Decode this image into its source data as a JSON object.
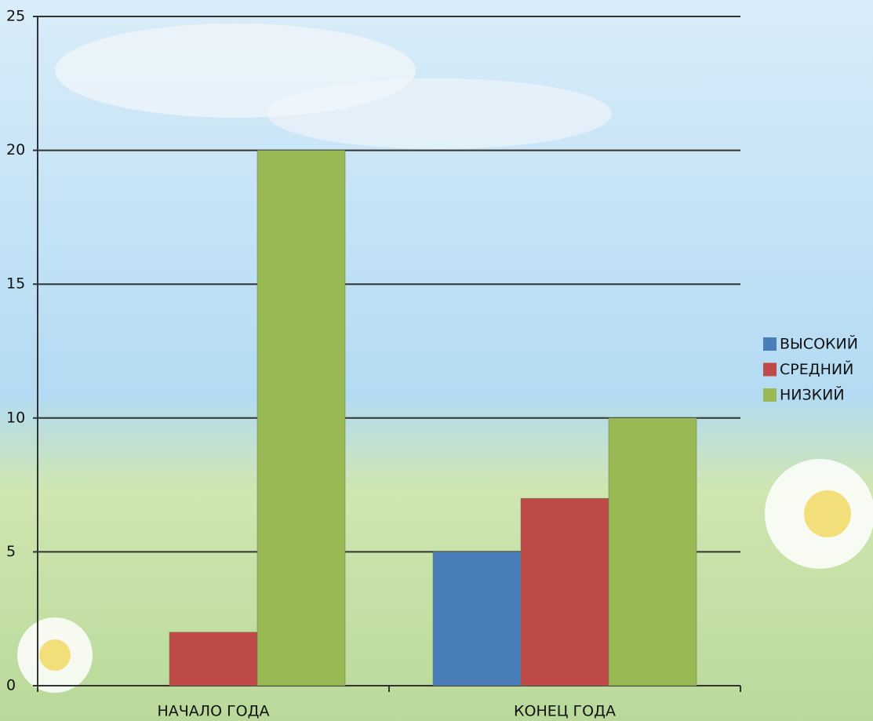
{
  "chart_data": {
    "type": "bar",
    "categories": [
      "НАЧАЛО ГОДА",
      "КОНЕЦ ГОДА"
    ],
    "series": [
      {
        "name": "ВЫСОКИЙ",
        "color": "#4a7ebb",
        "values": [
          0,
          5
        ]
      },
      {
        "name": "СРЕДНИЙ",
        "color": "#be4b48",
        "values": [
          2,
          7
        ]
      },
      {
        "name": "НИЗКИЙ",
        "color": "#98b954",
        "values": [
          20,
          10
        ]
      }
    ],
    "ylim": [
      0,
      25
    ],
    "yticks": [
      0,
      5,
      10,
      15,
      20,
      25
    ],
    "grid": true,
    "legend": "right"
  }
}
